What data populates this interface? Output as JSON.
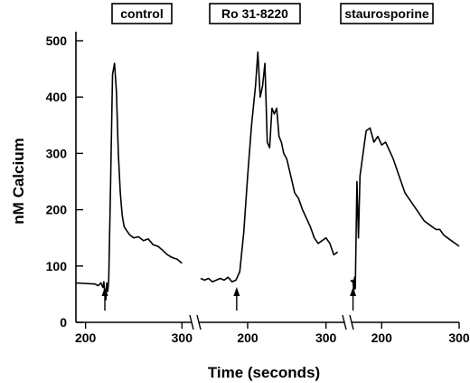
{
  "chart_data": {
    "type": "line",
    "ylabel": "nM Calcium",
    "xlabel": "Time (seconds)",
    "ylim": [
      0,
      500
    ],
    "yticks": [
      0,
      100,
      200,
      300,
      400,
      500
    ],
    "grid": false,
    "panels": [
      {
        "title": "control",
        "xlim": [
          200,
          300
        ],
        "xticks": [
          200,
          300
        ],
        "arrow_x": 220,
        "x": [
          190,
          210,
          213,
          216,
          218,
          219,
          220,
          221,
          222,
          223,
          224,
          226,
          228,
          230,
          232,
          234,
          236,
          238,
          240,
          243,
          246,
          250,
          255,
          260,
          265,
          270,
          275,
          280,
          285,
          290,
          295,
          300
        ],
        "y": [
          70,
          68,
          65,
          70,
          62,
          72,
          48,
          40,
          70,
          55,
          75,
          250,
          440,
          460,
          410,
          300,
          230,
          190,
          170,
          162,
          155,
          150,
          152,
          145,
          148,
          138,
          135,
          128,
          120,
          115,
          112,
          105
        ]
      },
      {
        "title": "Ro 31-8220",
        "xlim": [
          140,
          320
        ],
        "xticks": [
          200,
          300
        ],
        "arrow_x": 186,
        "x": [
          140,
          145,
          150,
          155,
          160,
          165,
          170,
          175,
          180,
          185,
          190,
          195,
          200,
          205,
          210,
          213,
          216,
          219,
          222,
          225,
          228,
          231,
          234,
          237,
          240,
          243,
          246,
          250,
          255,
          260,
          265,
          270,
          275,
          280,
          285,
          290,
          295,
          300,
          305,
          310,
          315
        ],
        "y": [
          78,
          75,
          78,
          72,
          75,
          78,
          75,
          80,
          72,
          75,
          90,
          160,
          260,
          350,
          420,
          480,
          400,
          420,
          460,
          320,
          310,
          380,
          370,
          380,
          330,
          320,
          300,
          290,
          260,
          230,
          220,
          200,
          185,
          170,
          150,
          140,
          145,
          150,
          140,
          120,
          125
        ]
      },
      {
        "title": "staurosporine",
        "xlim": [
          160,
          300
        ],
        "xticks": [
          200,
          300
        ],
        "arrow_x": 163,
        "x": [
          160,
          162,
          163,
          164,
          165,
          166,
          168,
          170,
          172,
          174,
          176,
          178,
          180,
          185,
          190,
          195,
          200,
          205,
          210,
          215,
          220,
          225,
          230,
          235,
          240,
          245,
          250,
          255,
          260,
          265,
          270,
          275,
          280,
          285,
          290,
          295,
          300
        ],
        "y": [
          75,
          72,
          75,
          55,
          80,
          60,
          250,
          150,
          260,
          280,
          300,
          320,
          340,
          345,
          320,
          330,
          315,
          320,
          305,
          290,
          270,
          250,
          230,
          220,
          210,
          200,
          190,
          180,
          175,
          170,
          165,
          165,
          155,
          150,
          145,
          140,
          135
        ]
      }
    ]
  }
}
